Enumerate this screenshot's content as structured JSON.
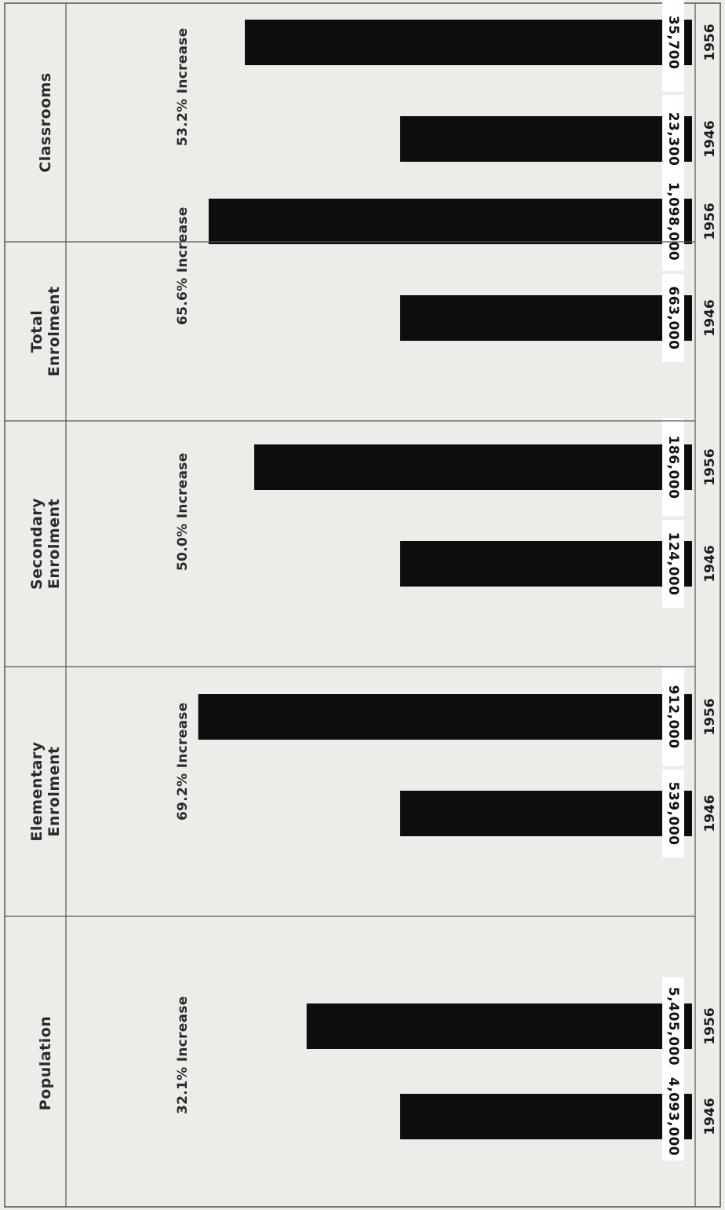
{
  "chart_data": {
    "type": "bar",
    "panels": [
      {
        "title_lines": [
          "Population"
        ],
        "increase": "32.1% Increase",
        "bars": [
          {
            "year": "1946",
            "value": 4093000,
            "label": "4,093,000"
          },
          {
            "year": "1956",
            "value": 5405000,
            "label": "5,405,000"
          }
        ]
      },
      {
        "title_lines": [
          "Elementary",
          "Enrolment"
        ],
        "increase": "69.2% Increase",
        "bars": [
          {
            "year": "1946",
            "value": 539000,
            "label": "539,000"
          },
          {
            "year": "1956",
            "value": 912000,
            "label": "912,000"
          }
        ]
      },
      {
        "title_lines": [
          "Secondary",
          "Enrolment"
        ],
        "increase": "50.0% Increase",
        "bars": [
          {
            "year": "1946",
            "value": 124000,
            "label": "124,000"
          },
          {
            "year": "1956",
            "value": 186000,
            "label": "186,000"
          }
        ]
      },
      {
        "title_lines": [
          "Total",
          "Enrolment"
        ],
        "increase": "65.6% Increase",
        "bars": [
          {
            "year": "1946",
            "value": 663000,
            "label": "663,000"
          },
          {
            "year": "1956",
            "value": 1098000,
            "label": "1,098,000"
          }
        ]
      },
      {
        "title_lines": [
          "Classrooms"
        ],
        "increase": "53.2% Increase",
        "bars": [
          {
            "year": "1946",
            "value": 23300,
            "label": "23,300"
          },
          {
            "year": "1956",
            "value": 35700,
            "label": "35,700"
          }
        ]
      }
    ]
  },
  "colors": {
    "background": "#ecece8",
    "bar": "#0d0d0d",
    "label_box": "#ffffff",
    "rule": "#555555"
  }
}
